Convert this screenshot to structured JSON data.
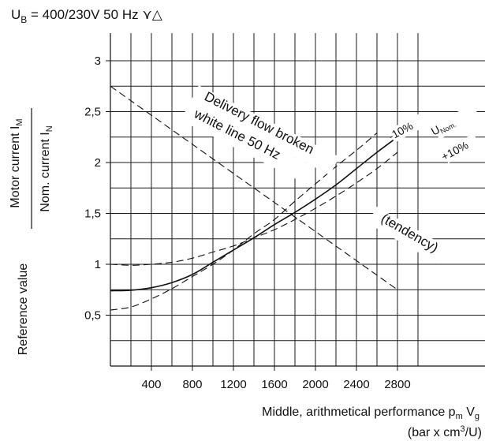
{
  "chart_data": {
    "type": "line",
    "title_prefix": "U",
    "title_sub": "B",
    "title_rest": " = 400/230V 50 Hz ⋎△",
    "xlabel_main": "Middle, arithmetical performance  p",
    "xlabel_sub1": "m",
    "xlabel_mid": " V",
    "xlabel_sub2": "g",
    "xlabel_unit_pre": "(bar x cm",
    "xlabel_unit_sup": "3",
    "xlabel_unit_post": "/U)",
    "ylabel_reference": "Reference value",
    "ylabel_motor_pre": "Motor current I",
    "ylabel_motor_sub": "M",
    "ylabel_nom_pre": "Nom. current I",
    "ylabel_nom_sub": "N",
    "xlim": [
      0,
      3000
    ],
    "ylim": [
      0,
      3.2
    ],
    "x_ticks": [
      400,
      800,
      1200,
      1600,
      2000,
      2400,
      2800
    ],
    "x_tick_labels": [
      "400",
      "800",
      "1200",
      "1600",
      "2000",
      "2400",
      "2800"
    ],
    "y_ticks": [
      0.5,
      1,
      1.5,
      2,
      2.5,
      3
    ],
    "y_tick_labels": [
      "0,5",
      "1",
      "1,5",
      "2",
      "2,5",
      "3"
    ],
    "grid": true,
    "series": [
      {
        "name": "U",
        "name_sub": "Nom.",
        "style": "solid",
        "x": [
          0,
          200,
          400,
          600,
          800,
          1000,
          1200,
          1400,
          1600,
          1800,
          2000,
          2200,
          2400,
          2600,
          2800
        ],
        "y": [
          0.74,
          0.745,
          0.77,
          0.82,
          0.9,
          1.02,
          1.14,
          1.26,
          1.39,
          1.51,
          1.64,
          1.78,
          1.94,
          2.1,
          2.25
        ]
      },
      {
        "name": "-10%",
        "style": "dashed",
        "x": [
          0,
          200,
          400,
          600,
          800,
          1000,
          1200,
          1400,
          1600,
          1800,
          2000,
          2200,
          2400,
          2600
        ],
        "y": [
          0.55,
          0.58,
          0.66,
          0.76,
          0.88,
          1.0,
          1.14,
          1.3,
          1.44,
          1.62,
          1.79,
          1.96,
          2.12,
          2.29
        ]
      },
      {
        "name": "+10%",
        "style": "dashed",
        "x": [
          0,
          200,
          400,
          600,
          800,
          1000,
          1200,
          1400,
          1600,
          1800,
          2000,
          2200,
          2400,
          2600,
          2800
        ],
        "y": [
          1.0,
          0.99,
          1.0,
          1.02,
          1.06,
          1.12,
          1.18,
          1.26,
          1.34,
          1.44,
          1.55,
          1.67,
          1.8,
          1.94,
          2.1
        ]
      },
      {
        "name": "Delivery flow broken white line 50 Hz (tendency)",
        "style": "dashed",
        "x": [
          0,
          2800
        ],
        "y": [
          2.75,
          0.75
        ]
      }
    ],
    "annotations": {
      "delivery_line1": "Delivery flow broken",
      "delivery_line2": "white line 50 Hz",
      "tendency": "(tendency)",
      "minus10": "-10%",
      "plus10": "+10%",
      "u_nom": "U",
      "u_nom_sub": "Nom."
    }
  }
}
